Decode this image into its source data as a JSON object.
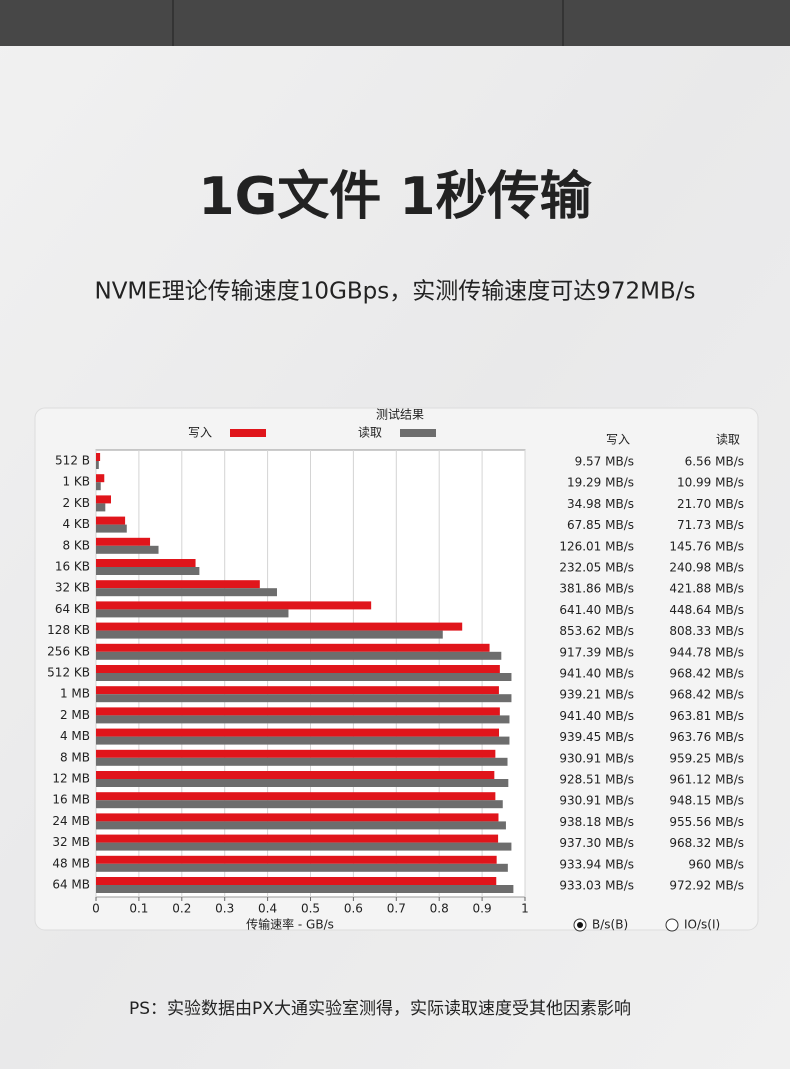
{
  "heading": {
    "title": "1G文件 1秒传输",
    "subtitle": "NVME理论传输速度10GBps，实测传输速度可达972MB/s"
  },
  "chart_data": {
    "type": "bar",
    "orientation": "horizontal",
    "title": "测试结果",
    "x_label": "传输速率 - GB/s",
    "categories": [
      "512 B",
      "1 KB",
      "2 KB",
      "4 KB",
      "8 KB",
      "16 KB",
      "32 KB",
      "64 KB",
      "128 KB",
      "256 KB",
      "512 KB",
      "1 MB",
      "2 MB",
      "4 MB",
      "8 MB",
      "12 MB",
      "16 MB",
      "24 MB",
      "32 MB",
      "48 MB",
      "64 MB"
    ],
    "series": [
      {
        "name": "写入",
        "color": "#e0151b",
        "values": [
          0.00957,
          0.01929,
          0.03498,
          0.06785,
          0.12601,
          0.23205,
          0.38186,
          0.6414,
          0.85362,
          0.91739,
          0.9414,
          0.93921,
          0.9414,
          0.93945,
          0.93091,
          0.92851,
          0.93091,
          0.93818,
          0.9373,
          0.93394,
          0.93303
        ],
        "value_labels": [
          "9.57 MB/s",
          "19.29 MB/s",
          "34.98 MB/s",
          "67.85 MB/s",
          "126.01 MB/s",
          "232.05 MB/s",
          "381.86 MB/s",
          "641.40 MB/s",
          "853.62 MB/s",
          "917.39 MB/s",
          "941.40 MB/s",
          "939.21 MB/s",
          "941.40 MB/s",
          "939.45 MB/s",
          "930.91 MB/s",
          "928.51 MB/s",
          "930.91 MB/s",
          "938.18 MB/s",
          "937.30 MB/s",
          "933.94 MB/s",
          "933.03 MB/s"
        ]
      },
      {
        "name": "读取",
        "color": "#6d6d6d",
        "values": [
          0.00656,
          0.01099,
          0.0217,
          0.07173,
          0.14576,
          0.24098,
          0.42188,
          0.44864,
          0.80833,
          0.94478,
          0.96842,
          0.96842,
          0.96381,
          0.96376,
          0.95925,
          0.96112,
          0.94815,
          0.95556,
          0.96832,
          0.96,
          0.97292
        ],
        "value_labels": [
          "6.56 MB/s",
          "10.99 MB/s",
          "21.70 MB/s",
          "71.73 MB/s",
          "145.76 MB/s",
          "240.98 MB/s",
          "421.88 MB/s",
          "448.64 MB/s",
          "808.33 MB/s",
          "944.78 MB/s",
          "968.42 MB/s",
          "968.42 MB/s",
          "963.81 MB/s",
          "963.76 MB/s",
          "959.25 MB/s",
          "961.12 MB/s",
          "948.15 MB/s",
          "955.56 MB/s",
          "968.32 MB/s",
          "960 MB/s",
          "972.92 MB/s"
        ]
      }
    ],
    "xlim": [
      0,
      1
    ],
    "xticks": [
      0,
      0.1,
      0.2,
      0.3,
      0.4,
      0.5,
      0.6,
      0.7,
      0.8,
      0.9,
      1
    ],
    "grid": true,
    "unit_options": [
      "B/s(B)",
      "IO/s(I)"
    ]
  },
  "footnote": "PS：实验数据由PX大通实验室测得，实际读取速度受其他因素影响"
}
